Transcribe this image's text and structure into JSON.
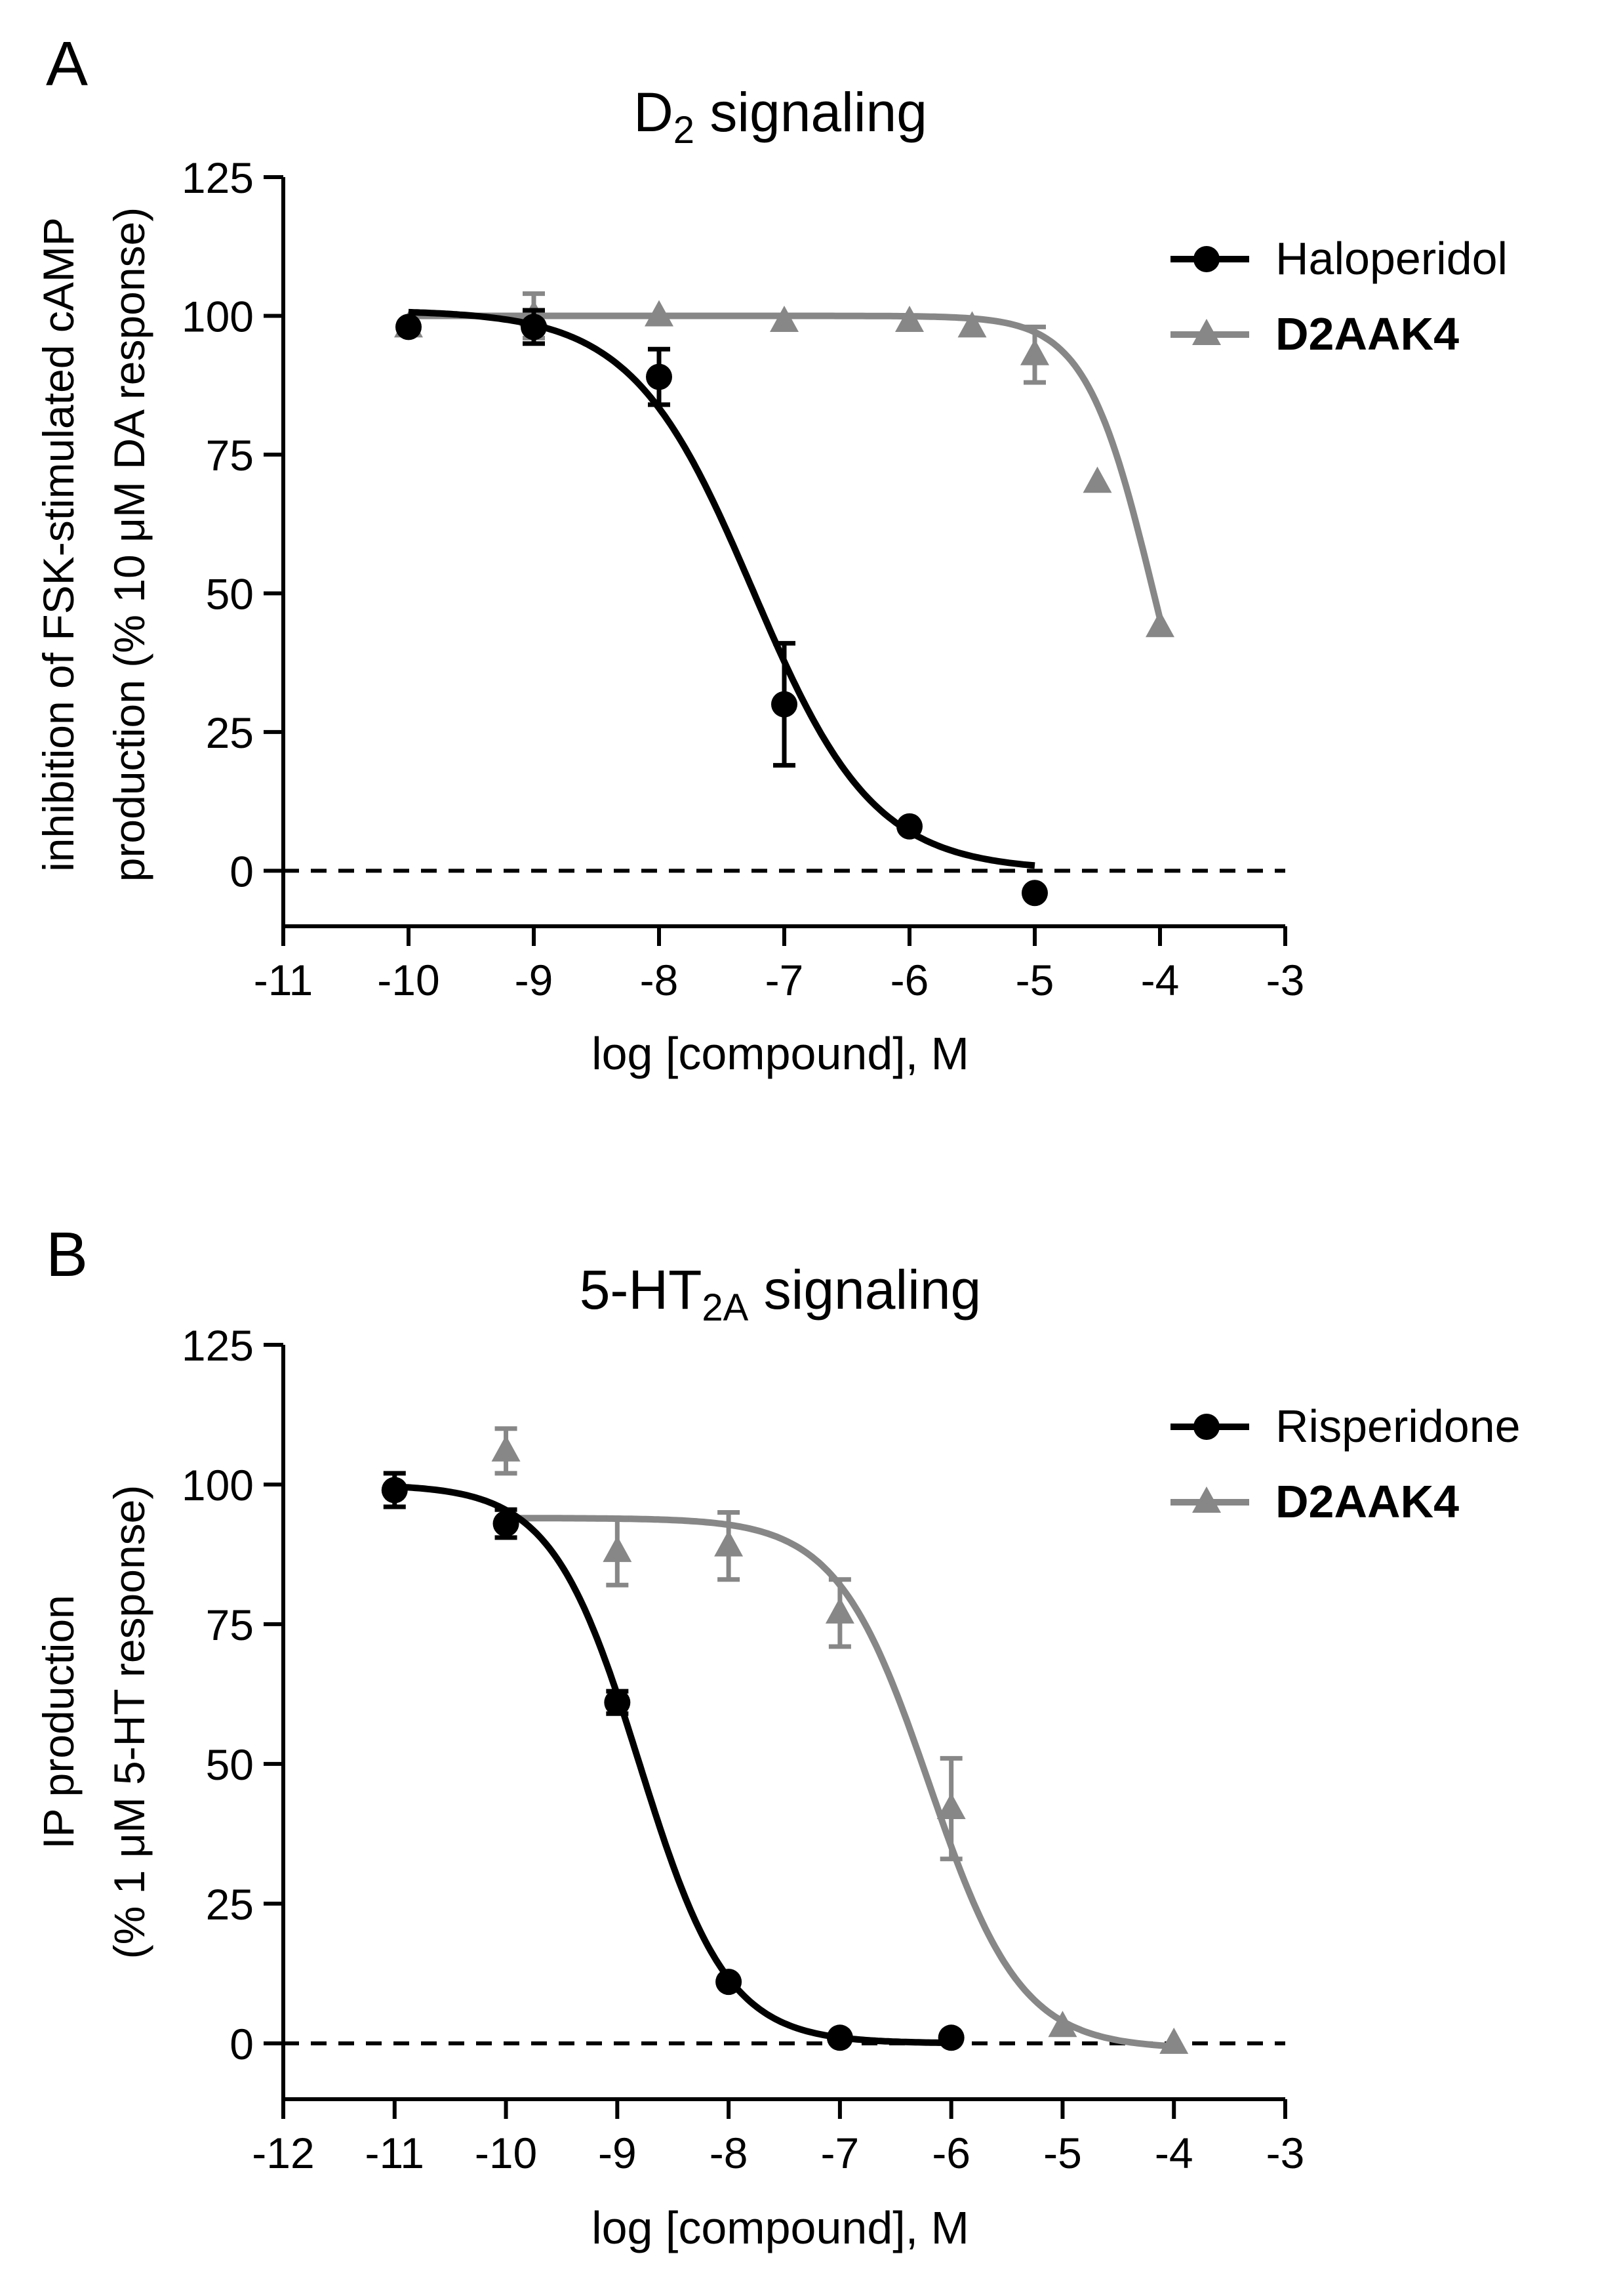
{
  "chart_data": [
    {
      "panel_label": "A",
      "type": "line",
      "title": {
        "main": "D",
        "sub": "2",
        "rest": " signaling"
      },
      "ylabel_lines": [
        "inhibition of FSK-stimulated cAMP",
        "production (% 10 μM DA response)"
      ],
      "xlabel": "log [compound], M",
      "xlim": [
        -11,
        -3
      ],
      "ylim": [
        -10,
        125
      ],
      "xticks": [
        -11,
        -10,
        -9,
        -8,
        -7,
        -6,
        -5,
        -4,
        -3
      ],
      "xtick_labels": [
        "-11",
        "-10",
        "-9",
        "-8",
        "-7",
        "-6",
        "-5",
        "-4",
        "-3"
      ],
      "yticks": [
        0,
        25,
        50,
        75,
        100,
        125
      ],
      "ytick_labels": [
        "0",
        "25",
        "50",
        "75",
        "100",
        "125"
      ],
      "reference_line_y": 0,
      "series": [
        {
          "name": "Haloperidol",
          "color": "#000000",
          "marker": "circle",
          "label_bold": false,
          "points": [
            {
              "x": -10,
              "y": 98,
              "err": 0
            },
            {
              "x": -9,
              "y": 98,
              "err": 3
            },
            {
              "x": -8,
              "y": 89,
              "err": 5
            },
            {
              "x": -7,
              "y": 30,
              "err": 11
            },
            {
              "x": -6,
              "y": 8,
              "err": 0
            },
            {
              "x": -5,
              "y": -4,
              "err": 0
            }
          ],
          "fit": {
            "top": 101,
            "bottom": 0,
            "logEC50": -7.25,
            "hill": -0.9,
            "xmin": -10,
            "xmax": -5
          }
        },
        {
          "name": "D2AAK4",
          "color": "#878787",
          "marker": "triangle",
          "label_bold": true,
          "points": [
            {
              "x": -10,
              "y": 98,
              "err": 0
            },
            {
              "x": -9,
              "y": 100,
              "err": 4
            },
            {
              "x": -8,
              "y": 100,
              "err": 0
            },
            {
              "x": -7,
              "y": 99,
              "err": 0
            },
            {
              "x": -6,
              "y": 99,
              "err": 0
            },
            {
              "x": -5.5,
              "y": 98,
              "err": 0
            },
            {
              "x": -5,
              "y": 93,
              "err": 5
            },
            {
              "x": -4.5,
              "y": 70,
              "err": 0
            },
            {
              "x": -4,
              "y": 44,
              "err": 0
            }
          ],
          "fit": {
            "top": 100,
            "bottom": 0,
            "logEC50": -4.05,
            "hill": -1.6,
            "xmin": -10,
            "xmax": -4
          }
        }
      ]
    },
    {
      "panel_label": "B",
      "type": "line",
      "title": {
        "main": "5-HT",
        "sub": "2A",
        "rest": " signaling"
      },
      "ylabel_lines": [
        "IP production",
        "(% 1 μM 5-HT response)"
      ],
      "xlabel": "log [compound], M",
      "xlim": [
        -12,
        -3
      ],
      "ylim": [
        -10,
        125
      ],
      "xticks": [
        -12,
        -11,
        -10,
        -9,
        -8,
        -7,
        -6,
        -5,
        -4,
        -3
      ],
      "xtick_labels": [
        "-12",
        "-11",
        "-10",
        "-9",
        "-8",
        "-7",
        "-6",
        "-5",
        "-4",
        "-3"
      ],
      "yticks": [
        0,
        25,
        50,
        75,
        100,
        125
      ],
      "ytick_labels": [
        "0",
        "25",
        "50",
        "75",
        "100",
        "125"
      ],
      "reference_line_y": 0,
      "series": [
        {
          "name": "Risperidone",
          "color": "#000000",
          "marker": "circle",
          "label_bold": false,
          "points": [
            {
              "x": -11,
              "y": 99,
              "err": 3
            },
            {
              "x": -10,
              "y": 93,
              "err": 2.5
            },
            {
              "x": -9,
              "y": 61,
              "err": 2
            },
            {
              "x": -8,
              "y": 11,
              "err": 0
            },
            {
              "x": -7,
              "y": 1,
              "err": 0
            },
            {
              "x": -6,
              "y": 1,
              "err": 0
            }
          ],
          "fit": {
            "top": 100,
            "bottom": 0,
            "logEC50": -8.8,
            "hill": -1.1,
            "xmin": -11,
            "xmax": -6
          }
        },
        {
          "name": "D2AAK4",
          "color": "#878787",
          "marker": "triangle",
          "label_bold": true,
          "points": [
            {
              "x": -10,
              "y": 106,
              "err": 4
            },
            {
              "x": -9,
              "y": 88,
              "err": 6
            },
            {
              "x": -8,
              "y": 89,
              "err": 6
            },
            {
              "x": -7,
              "y": 77,
              "err": 6
            },
            {
              "x": -6,
              "y": 42,
              "err": 9
            },
            {
              "x": -5,
              "y": 3,
              "err": 0
            },
            {
              "x": -4,
              "y": 0,
              "err": 0
            }
          ],
          "fit": {
            "top": 94,
            "bottom": -1,
            "logEC50": -6.2,
            "hill": -1.05,
            "xmin": -10,
            "xmax": -4
          }
        }
      ]
    }
  ]
}
